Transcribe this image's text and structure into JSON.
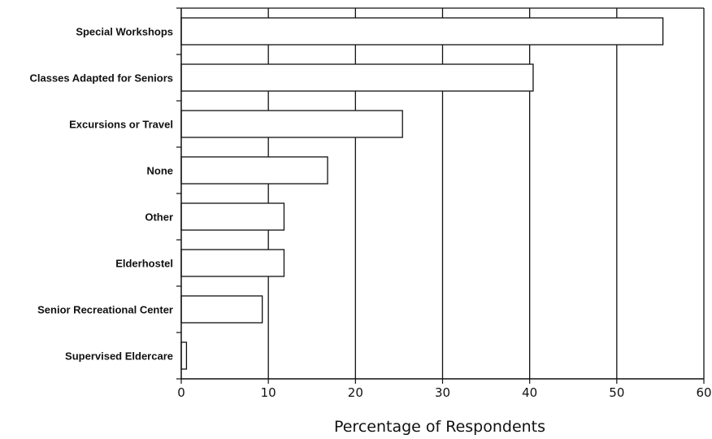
{
  "chart_data": {
    "type": "bar",
    "orientation": "horizontal",
    "categories": [
      "Special Workshops",
      "Classes Adapted for Seniors",
      "Excursions or Travel",
      "None",
      "Other",
      "Elderhostel",
      "Senior Recreational Center",
      "Supervised Eldercare"
    ],
    "values": [
      55.3,
      40.4,
      25.4,
      16.8,
      11.8,
      11.8,
      9.3,
      0.6
    ],
    "xlabel": "Percentage of Respondents",
    "ylabel": "",
    "xlim": [
      0,
      60
    ],
    "xticks": [
      "0",
      "10",
      "20",
      "30",
      "40",
      "50",
      "60"
    ],
    "grid": "vertical",
    "bar_color": "#ffffff",
    "edge_color": "#111111"
  }
}
